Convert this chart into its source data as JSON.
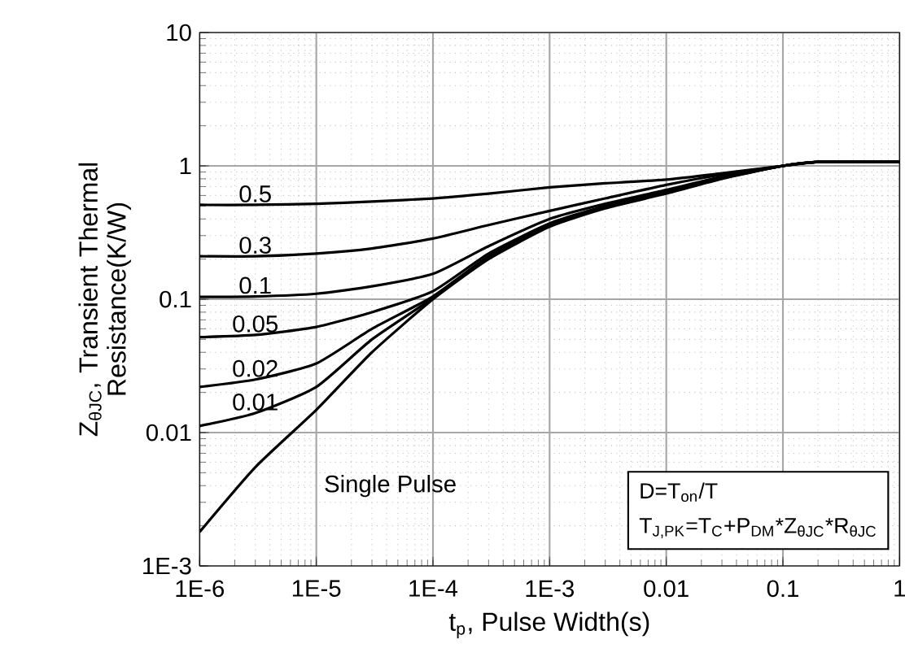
{
  "chart_data": {
    "type": "line",
    "xlabel": "t$_{p}$, Pulse Width(s)",
    "ylabel": "Z$_{θJC}$, Transient Thermal Resistance(K/W)",
    "log": "xy",
    "grid": true,
    "x": [
      1e-06,
      3e-06,
      1e-05,
      3e-05,
      0.0001,
      0.0003,
      0.001,
      0.003,
      0.01,
      0.03,
      0.1,
      0.2,
      0.5,
      1
    ],
    "xlim": [
      1e-06,
      1
    ],
    "ylim": [
      0.001,
      10
    ],
    "xticks": [
      {
        "value": 1e-06,
        "label": "1E-6"
      },
      {
        "value": 1e-05,
        "label": "1E-5"
      },
      {
        "value": 0.0001,
        "label": "1E-4"
      },
      {
        "value": 0.001,
        "label": "1E-3"
      },
      {
        "value": 0.01,
        "label": "0.01"
      },
      {
        "value": 0.1,
        "label": "0.1"
      },
      {
        "value": 1,
        "label": "1"
      }
    ],
    "yticks": [
      {
        "value": 0.001,
        "label": "1E-3"
      },
      {
        "value": 0.01,
        "label": "0.01"
      },
      {
        "value": 0.1,
        "label": "0.1"
      },
      {
        "value": 1,
        "label": "1"
      },
      {
        "value": 10,
        "label": "10"
      }
    ],
    "series": [
      {
        "name": "0.5",
        "color": "#000000",
        "values": [
          0.51,
          0.51,
          0.52,
          0.54,
          0.57,
          0.62,
          0.69,
          0.74,
          0.79,
          0.88,
          1.0,
          1.07,
          1.07,
          1.07
        ]
      },
      {
        "name": "0.3",
        "color": "#000000",
        "values": [
          0.21,
          0.21,
          0.22,
          0.24,
          0.285,
          0.36,
          0.46,
          0.57,
          0.72,
          0.86,
          1.0,
          1.07,
          1.07,
          1.07
        ]
      },
      {
        "name": "0.1",
        "color": "#000000",
        "values": [
          0.104,
          0.105,
          0.11,
          0.125,
          0.155,
          0.25,
          0.4,
          0.52,
          0.66,
          0.83,
          1.0,
          1.07,
          1.07,
          1.07
        ]
      },
      {
        "name": "0.05",
        "color": "#000000",
        "values": [
          0.052,
          0.054,
          0.062,
          0.08,
          0.115,
          0.22,
          0.37,
          0.5,
          0.64,
          0.82,
          1.0,
          1.07,
          1.07,
          1.07
        ]
      },
      {
        "name": "0.02",
        "color": "#000000",
        "values": [
          0.022,
          0.025,
          0.033,
          0.06,
          0.105,
          0.21,
          0.36,
          0.49,
          0.635,
          0.81,
          1.0,
          1.07,
          1.07,
          1.07
        ]
      },
      {
        "name": "0.01",
        "color": "#000000",
        "values": [
          0.0112,
          0.014,
          0.022,
          0.05,
          0.102,
          0.205,
          0.355,
          0.49,
          0.63,
          0.81,
          1.0,
          1.07,
          1.07,
          1.07
        ]
      },
      {
        "name": "Single Pulse",
        "color": "#000000",
        "values": [
          0.0018,
          0.0055,
          0.0148,
          0.04,
          0.1,
          0.2,
          0.35,
          0.48,
          0.62,
          0.8,
          1.0,
          1.07,
          1.07,
          1.07
        ]
      }
    ],
    "annotations": [
      "D=T$_{on}$/T",
      "T$_{J,PK}$=T$_{C}$+P$_{DM}$*Z$_{θJC}$*R$_{θJC}$"
    ]
  }
}
